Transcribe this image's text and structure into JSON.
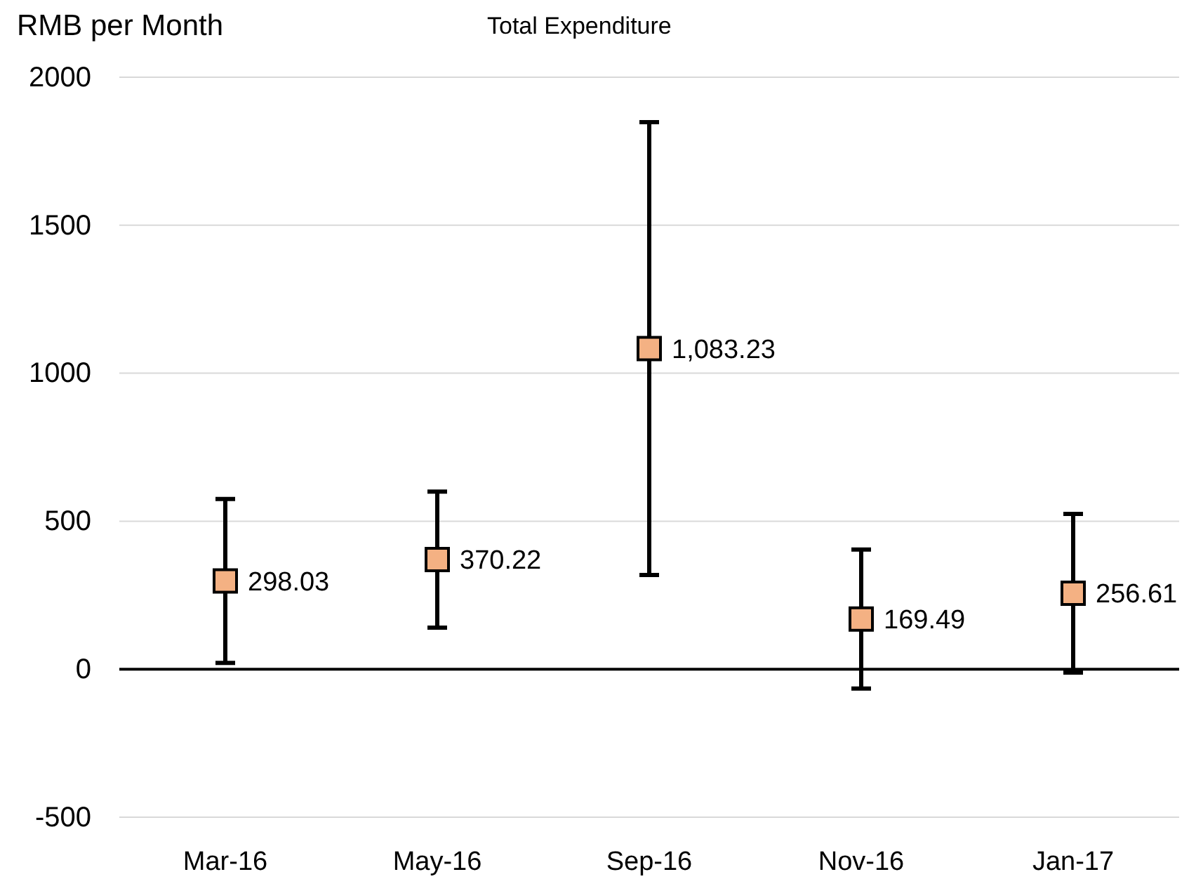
{
  "chart_data": {
    "type": "scatter",
    "title": "Total Expenditure",
    "ylabel": "RMB per Month",
    "categories": [
      "Mar-16",
      "May-16",
      "Sep-16",
      "Nov-16",
      "Jan-17"
    ],
    "values": [
      298.03,
      370.22,
      1083.23,
      169.49,
      256.61
    ],
    "errors": [
      277,
      230,
      765,
      235,
      268
    ],
    "value_labels": [
      "298.03",
      "370.22",
      "1,083.23",
      "169.49",
      "256.61"
    ],
    "color": "#f4b183",
    "marker": "square",
    "ylim": [
      -500,
      2000
    ],
    "yticks": [
      -500,
      0,
      500,
      1000,
      1500,
      2000
    ],
    "grid": "y"
  }
}
